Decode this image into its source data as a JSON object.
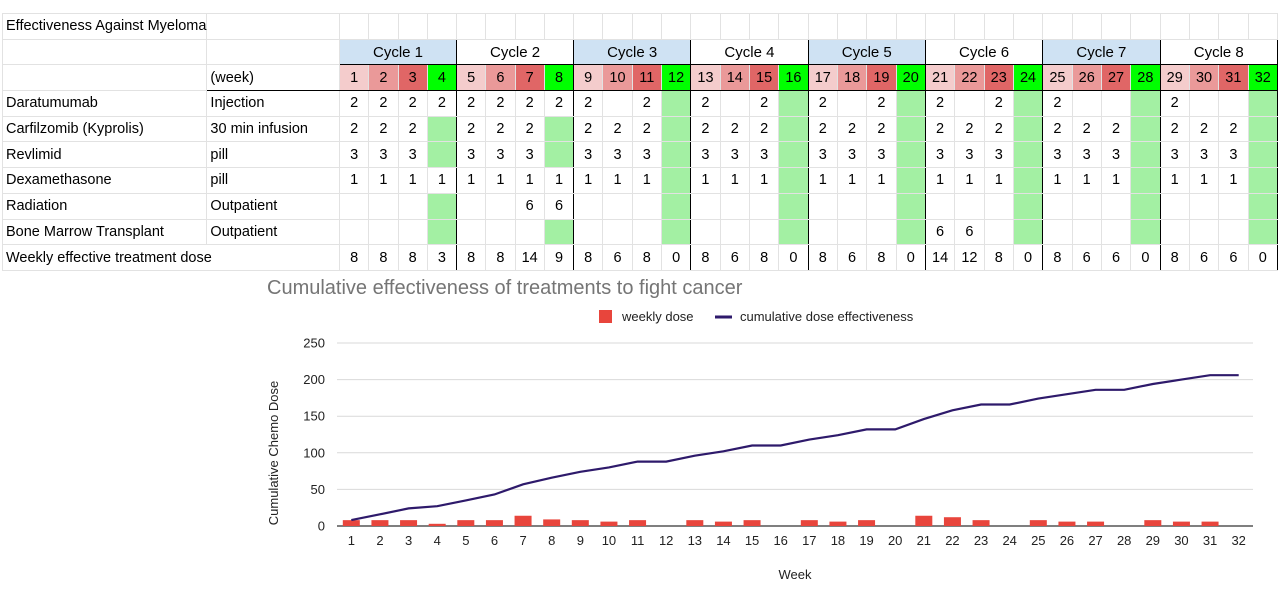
{
  "sheet": {
    "title": "Effectiveness Against Myeloma",
    "cycles": [
      "Cycle 1",
      "Cycle 2",
      "Cycle 3",
      "Cycle 4",
      "Cycle 5",
      "Cycle 6",
      "Cycle 7",
      "Cycle 8"
    ],
    "week_label": "(week)",
    "weeks": [
      "1",
      "2",
      "3",
      "4",
      "5",
      "6",
      "7",
      "8",
      "9",
      "10",
      "11",
      "12",
      "13",
      "14",
      "15",
      "16",
      "17",
      "18",
      "19",
      "20",
      "21",
      "22",
      "23",
      "24",
      "25",
      "26",
      "27",
      "28",
      "29",
      "30",
      "31",
      "32"
    ],
    "week_colors": [
      "#f4cccc",
      "#ea9999",
      "#e06666",
      "#00ff00"
    ],
    "rest_color": "#a3f0a3",
    "drugs": [
      {
        "name": "Daratumumab",
        "method": "Injection",
        "doses": [
          "2",
          "2",
          "2",
          "2",
          "2",
          "2",
          "2",
          "2",
          "2",
          "",
          "2",
          "",
          "2",
          "",
          "2",
          "",
          "2",
          "",
          "2",
          "",
          "2",
          "",
          "2",
          "",
          "2",
          "",
          "",
          "",
          "2",
          "",
          "",
          ""
        ]
      },
      {
        "name": "Carfilzomib (Kyprolis)",
        "method": "30 min infusion",
        "doses": [
          "2",
          "2",
          "2",
          "",
          "2",
          "2",
          "2",
          "",
          "2",
          "2",
          "2",
          "",
          "2",
          "2",
          "2",
          "",
          "2",
          "2",
          "2",
          "",
          "2",
          "2",
          "2",
          "",
          "2",
          "2",
          "2",
          "",
          "2",
          "2",
          "2",
          ""
        ]
      },
      {
        "name": "Revlimid",
        "method": "pill",
        "doses": [
          "3",
          "3",
          "3",
          "",
          "3",
          "3",
          "3",
          "",
          "3",
          "3",
          "3",
          "",
          "3",
          "3",
          "3",
          "",
          "3",
          "3",
          "3",
          "",
          "3",
          "3",
          "3",
          "",
          "3",
          "3",
          "3",
          "",
          "3",
          "3",
          "3",
          ""
        ]
      },
      {
        "name": "Dexamethasone",
        "method": "pill",
        "doses": [
          "1",
          "1",
          "1",
          "1",
          "1",
          "1",
          "1",
          "1",
          "1",
          "1",
          "1",
          "",
          "1",
          "1",
          "1",
          "",
          "1",
          "1",
          "1",
          "",
          "1",
          "1",
          "1",
          "",
          "1",
          "1",
          "1",
          "",
          "1",
          "1",
          "1",
          ""
        ]
      },
      {
        "name": "Radiation",
        "method": "Outpatient",
        "doses": [
          "",
          "",
          "",
          "",
          "",
          "",
          "6",
          "6",
          "",
          "",
          "",
          "",
          "",
          "",
          "",
          "",
          "",
          "",
          "",
          "",
          "",
          "",
          "",
          "",
          "",
          "",
          "",
          "",
          "",
          "",
          "",
          ""
        ]
      },
      {
        "name": "Bone Marrow Transplant",
        "method": "Outpatient",
        "doses": [
          "",
          "",
          "",
          "",
          "",
          "",
          "",
          "",
          "",
          "",
          "",
          "",
          "",
          "",
          "",
          "",
          "",
          "",
          "",
          "",
          "6",
          "6",
          "",
          "",
          "",
          "",
          "",
          "",
          "",
          "",
          "",
          ""
        ]
      }
    ],
    "total_label": "Weekly effective treatment dose",
    "totals": [
      "8",
      "8",
      "8",
      "3",
      "8",
      "8",
      "14",
      "9",
      "8",
      "6",
      "8",
      "0",
      "8",
      "6",
      "8",
      "0",
      "8",
      "6",
      "8",
      "0",
      "14",
      "12",
      "8",
      "0",
      "8",
      "6",
      "6",
      "0",
      "8",
      "6",
      "6",
      "0"
    ]
  },
  "chart_data": {
    "type": "bar",
    "title": "Cumulative effectiveness of treatments to fight cancer",
    "xlabel": "Week",
    "ylabel": "Cumulative Chemo Dose",
    "ylim": [
      0,
      250
    ],
    "yticks": [
      0,
      50,
      100,
      150,
      200,
      250
    ],
    "categories": [
      "1",
      "2",
      "3",
      "4",
      "5",
      "6",
      "7",
      "8",
      "9",
      "10",
      "11",
      "12",
      "13",
      "14",
      "15",
      "16",
      "17",
      "18",
      "19",
      "20",
      "21",
      "22",
      "23",
      "24",
      "25",
      "26",
      "27",
      "28",
      "29",
      "30",
      "31",
      "32"
    ],
    "grid": true,
    "legend_position": "top",
    "series": [
      {
        "name": "weekly dose",
        "type": "bar",
        "color": "#e8453c",
        "values": [
          8,
          8,
          8,
          3,
          8,
          8,
          14,
          9,
          8,
          6,
          8,
          0,
          8,
          6,
          8,
          0,
          8,
          6,
          8,
          0,
          14,
          12,
          8,
          0,
          8,
          6,
          6,
          0,
          8,
          6,
          6,
          0
        ]
      },
      {
        "name": "cumulative dose effectiveness",
        "type": "line",
        "color": "#2e1a6b",
        "values": [
          8,
          16,
          24,
          27,
          35,
          43,
          57,
          66,
          74,
          80,
          88,
          88,
          96,
          102,
          110,
          110,
          118,
          124,
          132,
          132,
          146,
          158,
          166,
          166,
          174,
          180,
          186,
          186,
          194,
          200,
          206,
          206
        ]
      }
    ]
  }
}
